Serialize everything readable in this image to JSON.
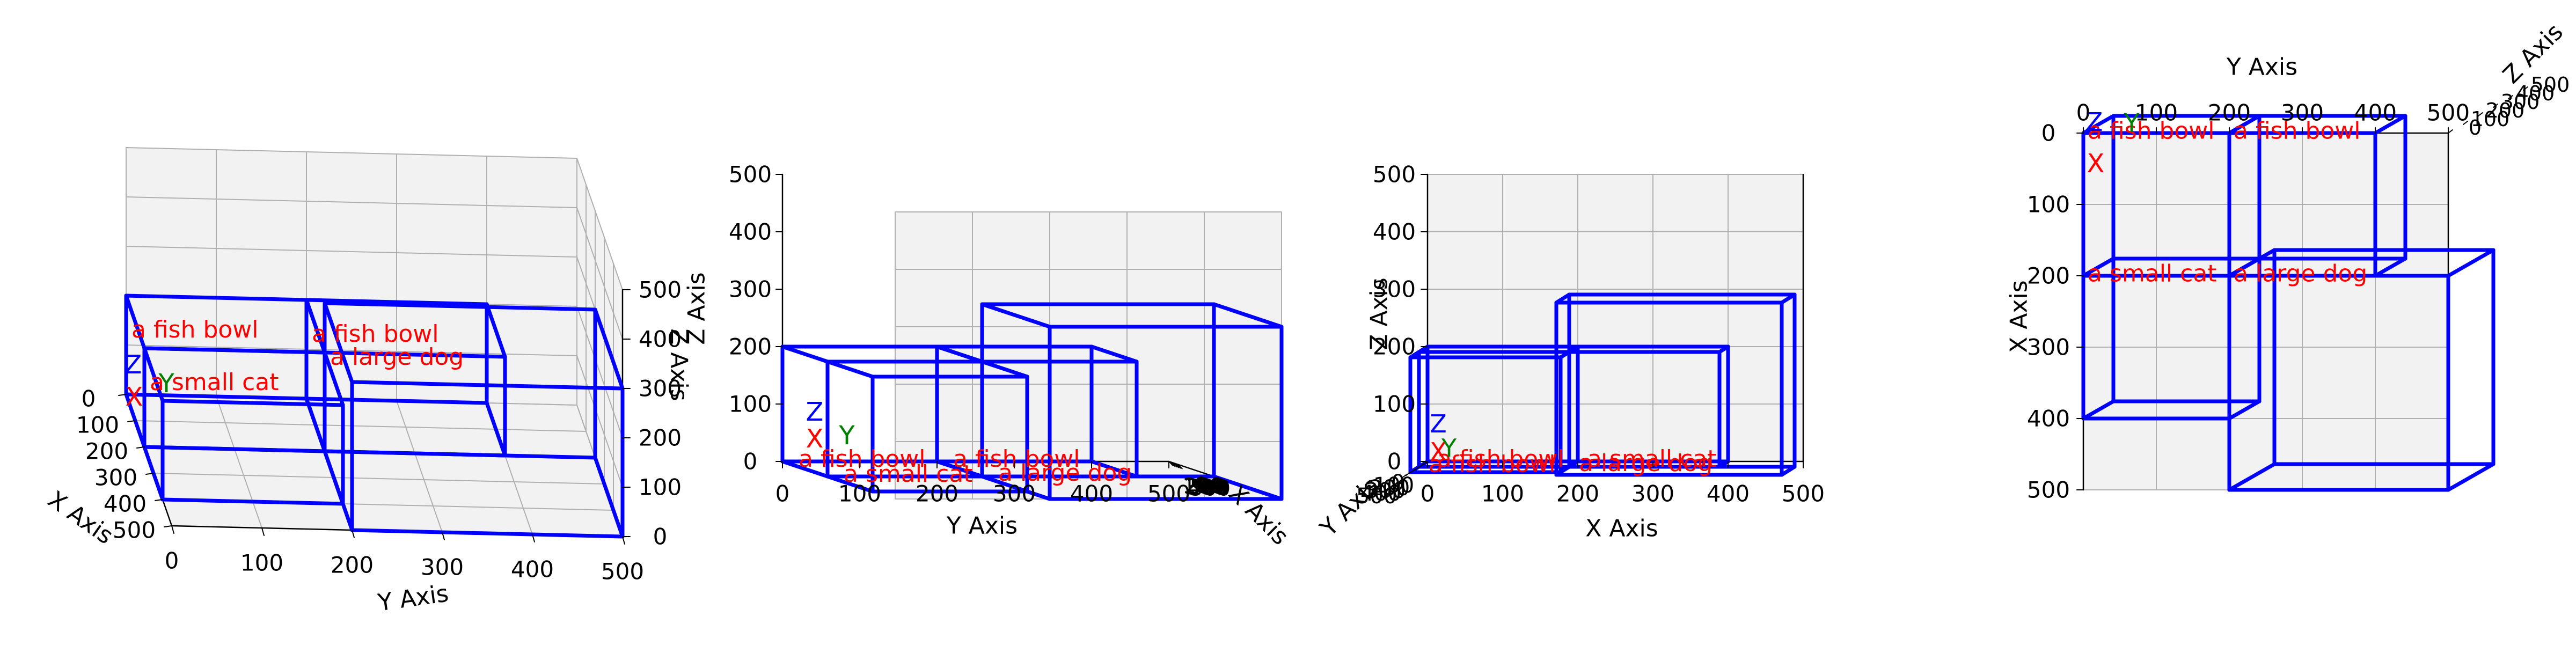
{
  "chart_data": {
    "type": "3d-boxes",
    "axes": {
      "x": {
        "label": "X Axis",
        "range": [
          0,
          500
        ]
      },
      "y": {
        "label": "Y Axis",
        "range": [
          0,
          500
        ]
      },
      "z": {
        "label": "Z Axis",
        "range": [
          0,
          500
        ]
      }
    },
    "ticks": [
      "0",
      "100",
      "200",
      "300",
      "400",
      "500"
    ],
    "views": [
      "perspective",
      "front (Z vs Y)",
      "side (Z vs X)",
      "top (X vs Y)"
    ],
    "objects": [
      {
        "label": "a fish bowl",
        "x": [
          0,
          200
        ],
        "y": [
          0,
          200
        ],
        "z": [
          0,
          200
        ]
      },
      {
        "label": "a fish bowl",
        "x": [
          0,
          200
        ],
        "y": [
          200,
          400
        ],
        "z": [
          0,
          200
        ]
      },
      {
        "label": "a small cat",
        "x": [
          200,
          400
        ],
        "y": [
          0,
          200
        ],
        "z": [
          0,
          200
        ]
      },
      {
        "label": "a large dog",
        "x": [
          200,
          500
        ],
        "y": [
          200,
          500
        ],
        "z": [
          0,
          300
        ]
      }
    ],
    "origin_markers": [
      "X",
      "Y",
      "Z"
    ],
    "grid": true
  },
  "colors": {
    "box": "#0000ff",
    "label": "#ff0000",
    "x_marker": "#ff0000",
    "y_marker": "#008000",
    "z_marker": "#0000ff",
    "pane": "#f2f2f2",
    "grid": "#b0b0b0"
  }
}
